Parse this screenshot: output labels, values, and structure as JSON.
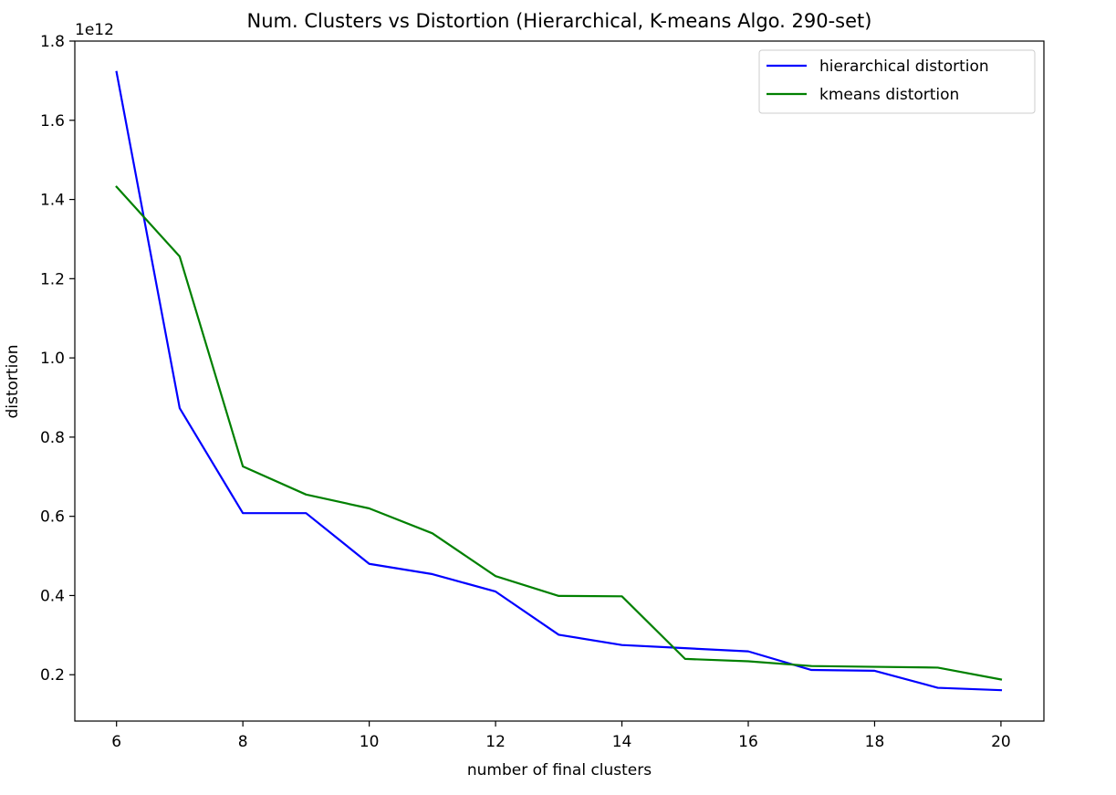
{
  "chart_data": {
    "type": "line",
    "title": "Num. Clusters vs Distortion (Hierarchical, K-means Algo. 290-set)",
    "xlabel": "number of final clusters",
    "ylabel": "distortion",
    "offset_text": "1e12",
    "xlim": [
      5.34,
      20.68
    ],
    "ylim": [
      0.083,
      1.8
    ],
    "x_ticks": [
      6,
      8,
      10,
      12,
      14,
      16,
      18,
      20
    ],
    "y_ticks": [
      0.2,
      0.4,
      0.6,
      0.8,
      1.0,
      1.2,
      1.4,
      1.6,
      1.8
    ],
    "y_tick_labels": [
      "0.2",
      "0.4",
      "0.6",
      "0.8",
      "1.0",
      "1.2",
      "1.4",
      "1.6",
      "1.8"
    ],
    "legend_position": "top-right",
    "grid": false,
    "x": [
      6,
      7,
      8,
      9,
      10,
      11,
      12,
      13,
      14,
      15,
      16,
      17,
      18,
      19,
      20
    ],
    "series": [
      {
        "name": "hierarchical distortion",
        "color": "#0000ff",
        "values": [
          1.722,
          0.873,
          0.608,
          0.608,
          0.48,
          0.454,
          0.41,
          0.301,
          0.275,
          0.267,
          0.259,
          0.212,
          0.21,
          0.167,
          0.161
        ]
      },
      {
        "name": "kmeans distortion",
        "color": "#008000",
        "values": [
          1.432,
          1.256,
          0.726,
          0.655,
          0.62,
          0.557,
          0.449,
          0.399,
          0.398,
          0.24,
          0.234,
          0.222,
          0.22,
          0.218,
          0.188
        ]
      }
    ]
  }
}
